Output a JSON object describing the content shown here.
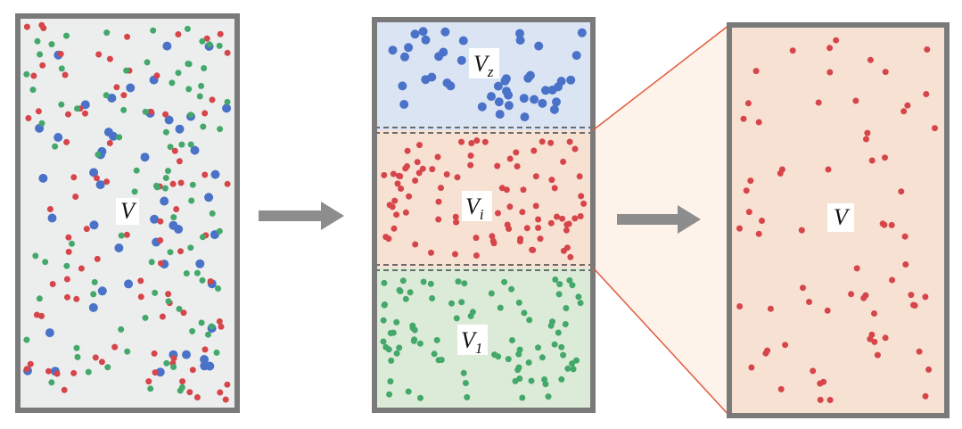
{
  "labels": {
    "mixed_volume": "V",
    "upper_volume": "V",
    "upper_sub": "z",
    "middle_volume": "V",
    "middle_sub": "i",
    "lower_volume": "V",
    "lower_sub": "1",
    "expanded_volume": "V"
  },
  "colors": {
    "blue_particle": "#4a72c8",
    "red_particle": "#d6454a",
    "green_particle": "#43a86a",
    "mixed_fill": "#eceeed",
    "blue_fill": "#dbe4f3",
    "red_fill": "#f7e1d3",
    "green_fill": "#dcebd8",
    "frame": "#7a7a7a",
    "arrow": "#8a8a8a",
    "connector": "#e05a3c"
  },
  "icons": [
    "right-arrow-icon",
    "right-arrow-icon"
  ]
}
